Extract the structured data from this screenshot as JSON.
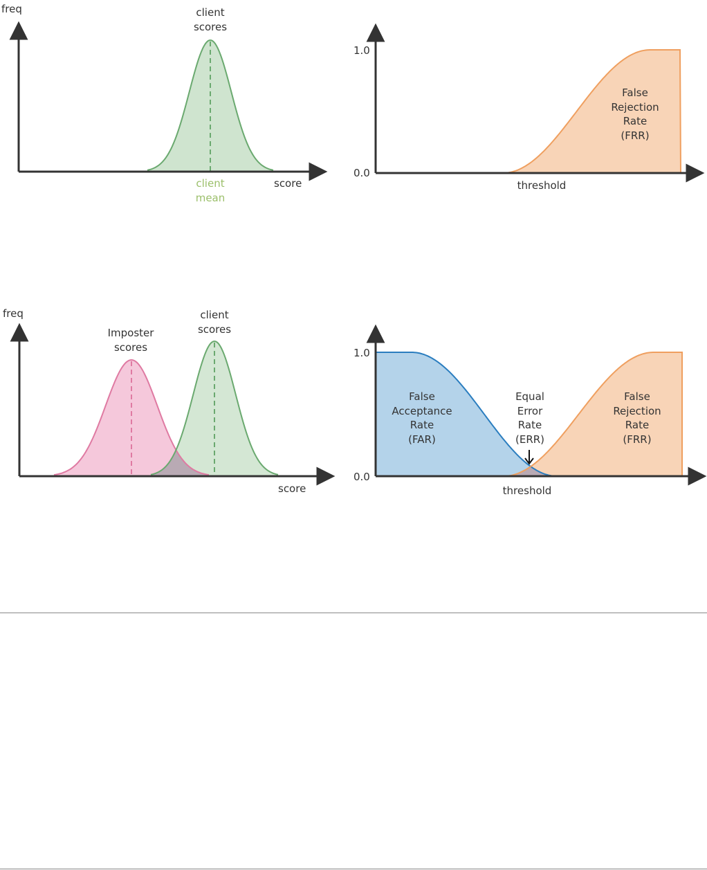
{
  "panel1": {
    "ylabel": "freq",
    "xlabel": "score",
    "curve_label": [
      "client",
      "scores"
    ],
    "mean_label": [
      "client",
      "mean"
    ]
  },
  "panel2": {
    "y_ticks": [
      "1.0",
      "0.0"
    ],
    "xlabel": "threshold",
    "frr_label": [
      "False",
      "Rejection",
      "Rate",
      "(FRR)"
    ]
  },
  "panel3": {
    "ylabel": "freq",
    "xlabel": "score",
    "imposter_label": [
      "Imposter",
      "scores"
    ],
    "client_label": [
      "client",
      "scores"
    ]
  },
  "panel4": {
    "y_ticks": [
      "1.0",
      "0.0"
    ],
    "xlabel": "threshold",
    "far_label": [
      "False",
      "Acceptance",
      "Rate",
      "(FAR)"
    ],
    "err_label": [
      "Equal",
      "Error",
      "Rate",
      "(ERR)"
    ],
    "frr_label": [
      "False",
      "Rejection",
      "Rate",
      "(FRR)"
    ]
  },
  "colors": {
    "client": "#6aa96f",
    "client_fill": "#cfe4cf",
    "imposter": "#df7aa2",
    "imposter_fill": "#f5c8db",
    "far": "#2a7dbf",
    "far_fill": "#b4d3ea",
    "frr": "#ef9f5f",
    "frr_fill": "#f8d4b7",
    "overlap": "#b9aab4",
    "mean_text": "#9bbf6a"
  }
}
